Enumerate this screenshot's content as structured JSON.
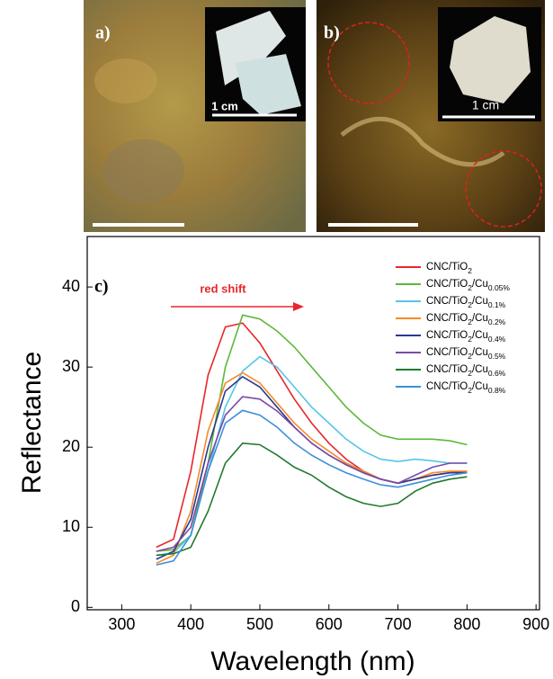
{
  "panels": {
    "a": {
      "label": "a)",
      "inset_scale": "1 cm"
    },
    "b": {
      "label": "b)",
      "inset_scale": "1 cm"
    }
  },
  "chart_data": {
    "type": "line",
    "panel_label": "c)",
    "annotation": "red shift",
    "x_label": "Wavelength (nm)",
    "y_label": "Reflectance",
    "xlim": [
      250,
      905
    ],
    "ylim": [
      -0.3,
      46.3
    ],
    "xticks": [
      300,
      400,
      500,
      600,
      700,
      800,
      900
    ],
    "yticks": [
      0,
      10,
      20,
      30,
      40
    ],
    "x": [
      350,
      375,
      400,
      425,
      450,
      475,
      500,
      525,
      550,
      575,
      600,
      625,
      650,
      675,
      700,
      725,
      750,
      775,
      800
    ],
    "series": [
      {
        "name": "CNC/TiO2",
        "color": "#e8262b",
        "values": [
          7.5,
          8.5,
          17,
          29,
          35,
          35.5,
          33,
          29.5,
          26,
          23,
          20.5,
          18.5,
          17,
          16,
          15.5,
          16,
          16.5,
          16.8,
          17
        ]
      },
      {
        "name": "CNC/TiO2/Cu0.05%",
        "color": "#5cb83a",
        "values": [
          7,
          7.2,
          9,
          18,
          30,
          36.5,
          36,
          34.5,
          32.5,
          30,
          27.5,
          25,
          23,
          21.5,
          21,
          21,
          21,
          20.8,
          20.3
        ]
      },
      {
        "name": "CNC/TiO2/Cu0.1%",
        "color": "#54c6e8",
        "values": [
          6.5,
          6.8,
          9,
          17,
          25,
          29.5,
          31.3,
          30,
          27.5,
          25,
          23,
          21,
          19.5,
          18.5,
          18.2,
          18.5,
          18.3,
          18,
          18
        ]
      },
      {
        "name": "CNC/TiO2/Cu0.2%",
        "color": "#f58a2a",
        "values": [
          5.5,
          6.5,
          12,
          22,
          28,
          29.3,
          28,
          25.5,
          23,
          21,
          19.5,
          18,
          17,
          16,
          15.5,
          16,
          16.8,
          17,
          17
        ]
      },
      {
        "name": "CNC/TiO2/Cu0.4%",
        "color": "#2b3990",
        "values": [
          6,
          7,
          11,
          20,
          27,
          28.8,
          27.5,
          25,
          22.5,
          20.5,
          19,
          17.8,
          16.8,
          16,
          15.5,
          16,
          16.5,
          16.8,
          16.8
        ]
      },
      {
        "name": "CNC/TiO2/Cu0.5%",
        "color": "#7a4aa8",
        "values": [
          7,
          7.5,
          10,
          18,
          24,
          26.3,
          26,
          24.5,
          22.5,
          20.5,
          19,
          17.8,
          16.8,
          16,
          15.5,
          16.5,
          17.5,
          18,
          18
        ]
      },
      {
        "name": "CNC/TiO2/Cu0.6%",
        "color": "#1f7a2e",
        "values": [
          6.5,
          6.7,
          7.5,
          12,
          18,
          20.5,
          20.3,
          19,
          17.5,
          16.5,
          15,
          13.8,
          13,
          12.6,
          13,
          14.5,
          15.5,
          16,
          16.3
        ]
      },
      {
        "name": "CNC/TiO2/Cu0.8%",
        "color": "#3d8fd9",
        "values": [
          5.3,
          5.8,
          9,
          17,
          23,
          24.6,
          24,
          22.5,
          20.5,
          19,
          17.8,
          16.8,
          16,
          15.3,
          15,
          15.5,
          16,
          16.5,
          16.8
        ]
      }
    ]
  }
}
